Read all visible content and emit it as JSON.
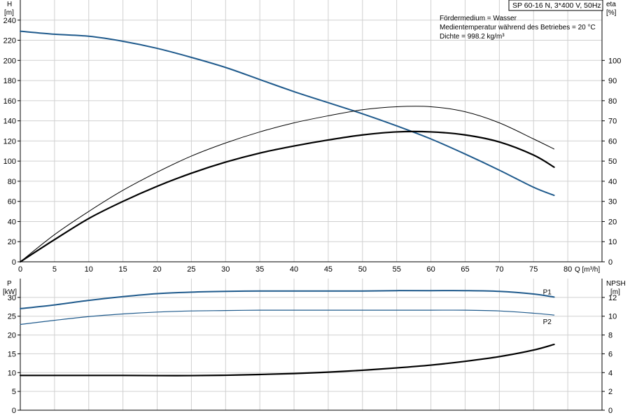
{
  "title_box": "SP 60-16 N, 3*400 V, 50Hz",
  "info_lines": [
    "Fördermedium = Wasser",
    "Medientemperatur während des Betriebes = 20 °C",
    "Dichte = 998.2 kg/m³"
  ],
  "colors": {
    "head": "#1f5a8c",
    "eta": "#000000",
    "power": "#1f5a8c",
    "npsh": "#000000",
    "grid": "#d0d0d0"
  },
  "chart_data": [
    {
      "type": "line",
      "name": "upper-chart",
      "xlabel": "Q [m³/h]",
      "x_ticks": [
        0,
        5,
        10,
        15,
        20,
        25,
        30,
        35,
        40,
        45,
        50,
        55,
        60,
        65,
        70,
        75,
        80
      ],
      "xlim": [
        0,
        85
      ],
      "left_axis": {
        "label": "H",
        "unit": "[m]",
        "lim": [
          0,
          260
        ],
        "ticks": [
          0,
          20,
          40,
          60,
          80,
          100,
          120,
          140,
          160,
          180,
          200,
          220,
          240
        ]
      },
      "right_axis": {
        "label": "eta",
        "unit": "[%]",
        "lim": [
          0,
          130
        ],
        "ticks": [
          0,
          10,
          20,
          30,
          40,
          50,
          60,
          70,
          80,
          90,
          100
        ]
      },
      "series": [
        {
          "key": "head",
          "axis": "left",
          "color": "#1f5a8c",
          "width": 2,
          "points": [
            [
              0,
              229
            ],
            [
              5,
              226
            ],
            [
              10,
              224
            ],
            [
              15,
              219
            ],
            [
              20,
              212
            ],
            [
              25,
              203
            ],
            [
              30,
              193
            ],
            [
              35,
              181
            ],
            [
              40,
              169
            ],
            [
              45,
              158
            ],
            [
              50,
              147
            ],
            [
              55,
              135
            ],
            [
              60,
              122
            ],
            [
              65,
              107
            ],
            [
              70,
              91
            ],
            [
              75,
              74
            ],
            [
              78,
              66
            ]
          ]
        },
        {
          "key": "eta-thin",
          "axis": "right",
          "color": "#000000",
          "width": 1,
          "points": [
            [
              0,
              0
            ],
            [
              5,
              13.5
            ],
            [
              10,
              25
            ],
            [
              15,
              35.5
            ],
            [
              20,
              44.5
            ],
            [
              25,
              52.5
            ],
            [
              30,
              59
            ],
            [
              35,
              64.5
            ],
            [
              40,
              69
            ],
            [
              45,
              72.5
            ],
            [
              50,
              75.5
            ],
            [
              55,
              77
            ],
            [
              60,
              77
            ],
            [
              65,
              74.5
            ],
            [
              70,
              69
            ],
            [
              75,
              61
            ],
            [
              78,
              56
            ]
          ]
        },
        {
          "key": "eta-bold",
          "axis": "right",
          "color": "#000000",
          "width": 2.2,
          "points": [
            [
              0,
              0
            ],
            [
              5,
              11
            ],
            [
              10,
              21.5
            ],
            [
              15,
              30
            ],
            [
              20,
              37.5
            ],
            [
              25,
              44
            ],
            [
              30,
              49.5
            ],
            [
              35,
              54
            ],
            [
              40,
              57.5
            ],
            [
              45,
              60.5
            ],
            [
              50,
              63
            ],
            [
              55,
              64.5
            ],
            [
              60,
              64.5
            ],
            [
              65,
              63
            ],
            [
              70,
              59.5
            ],
            [
              75,
              53
            ],
            [
              78,
              47
            ]
          ]
        }
      ]
    },
    {
      "type": "line",
      "name": "lower-chart",
      "x_ticks": [
        0,
        5,
        10,
        15,
        20,
        25,
        30,
        35,
        40,
        45,
        50,
        55,
        60,
        65,
        70,
        75,
        80
      ],
      "xlim": [
        0,
        85
      ],
      "left_axis": {
        "label": "P",
        "unit": "[kW]",
        "lim": [
          0,
          35
        ],
        "ticks": [
          0,
          5,
          10,
          15,
          20,
          25,
          30
        ]
      },
      "right_axis": {
        "label": "NPSH",
        "unit": "[m]",
        "lim": [
          0,
          14
        ],
        "ticks": [
          0,
          2,
          4,
          6,
          8,
          10,
          12
        ]
      },
      "series": [
        {
          "key": "p1",
          "name": "P1",
          "axis": "left",
          "color": "#1f5a8c",
          "width": 2,
          "points": [
            [
              0,
              27
            ],
            [
              5,
              28
            ],
            [
              10,
              29.2
            ],
            [
              15,
              30.2
            ],
            [
              20,
              31
            ],
            [
              25,
              31.4
            ],
            [
              30,
              31.6
            ],
            [
              35,
              31.7
            ],
            [
              40,
              31.7
            ],
            [
              45,
              31.7
            ],
            [
              50,
              31.7
            ],
            [
              55,
              31.8
            ],
            [
              60,
              31.8
            ],
            [
              65,
              31.8
            ],
            [
              70,
              31.6
            ],
            [
              75,
              30.9
            ],
            [
              78,
              30.1
            ]
          ]
        },
        {
          "key": "p2",
          "name": "P2",
          "axis": "left",
          "color": "#1f5a8c",
          "width": 1.2,
          "points": [
            [
              0,
              22.8
            ],
            [
              5,
              23.9
            ],
            [
              10,
              24.9
            ],
            [
              15,
              25.6
            ],
            [
              20,
              26.1
            ],
            [
              25,
              26.4
            ],
            [
              30,
              26.5
            ],
            [
              35,
              26.6
            ],
            [
              40,
              26.6
            ],
            [
              45,
              26.6
            ],
            [
              50,
              26.6
            ],
            [
              55,
              26.6
            ],
            [
              60,
              26.6
            ],
            [
              65,
              26.6
            ],
            [
              70,
              26.4
            ],
            [
              75,
              25.8
            ],
            [
              78,
              25.3
            ]
          ]
        },
        {
          "key": "npsh",
          "axis": "right",
          "color": "#000000",
          "width": 2.2,
          "points": [
            [
              0,
              3.7
            ],
            [
              5,
              3.7
            ],
            [
              10,
              3.7
            ],
            [
              15,
              3.7
            ],
            [
              20,
              3.68
            ],
            [
              25,
              3.68
            ],
            [
              30,
              3.72
            ],
            [
              35,
              3.8
            ],
            [
              40,
              3.9
            ],
            [
              45,
              4.05
            ],
            [
              50,
              4.25
            ],
            [
              55,
              4.5
            ],
            [
              60,
              4.8
            ],
            [
              65,
              5.2
            ],
            [
              70,
              5.7
            ],
            [
              75,
              6.4
            ],
            [
              78,
              7.0
            ]
          ]
        }
      ]
    }
  ]
}
